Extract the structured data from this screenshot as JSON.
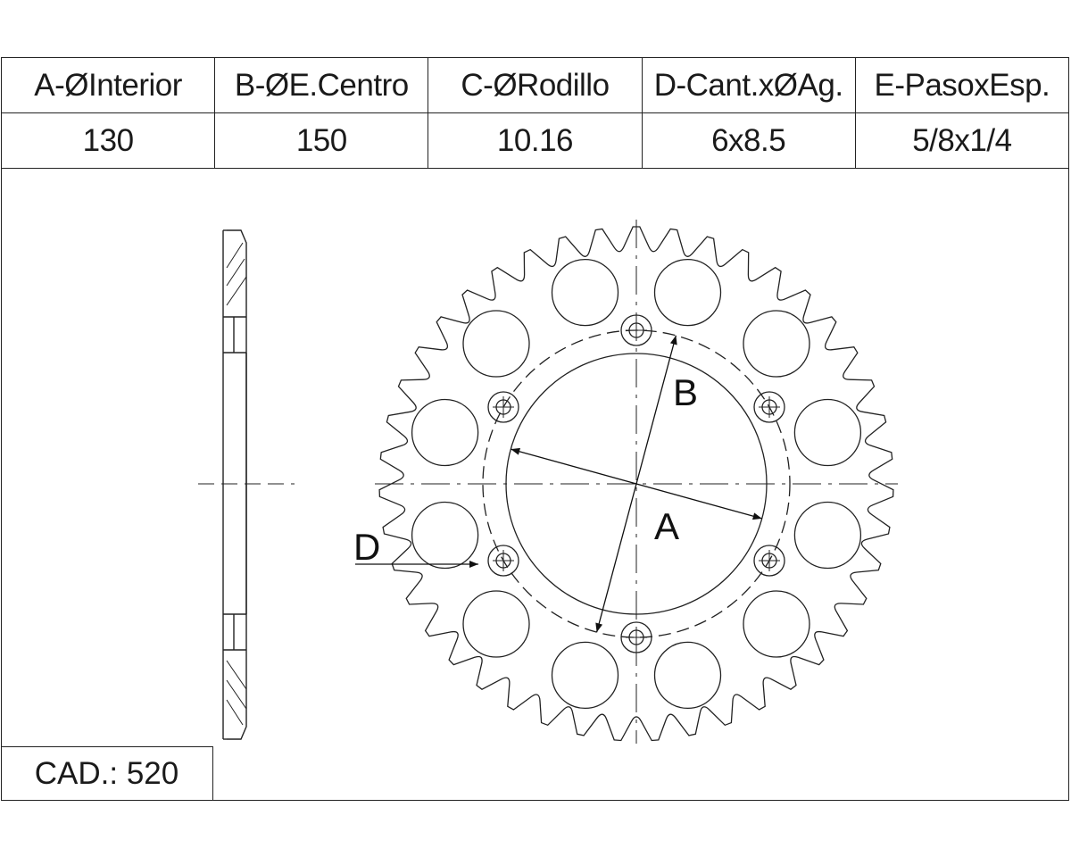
{
  "spec_table": {
    "headers": [
      "A-ØInterior",
      "B-ØE.Centro",
      "C-ØRodillo",
      "D-Cant.xØAg.",
      "E-PasoxEsp."
    ],
    "values": [
      "130",
      "150",
      "10.16",
      "6x8.5",
      "5/8x1/4"
    ]
  },
  "cad_label": "CAD.: 520",
  "drawing": {
    "label_a": "A",
    "label_b": "B",
    "label_d": "D",
    "tooth_count": 43,
    "bolt_holes": 6,
    "lightening_holes": 12
  },
  "colors": {
    "line": "#222222",
    "background": "#ffffff"
  }
}
